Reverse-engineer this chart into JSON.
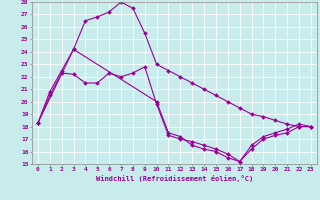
{
  "xlabel": "Windchill (Refroidissement éolien,°C)",
  "bg_color": "#c8ecec",
  "line_color": "#990099",
  "grid_color": "#ffffff",
  "ylim": [
    15,
    28
  ],
  "xlim": [
    -0.5,
    23.5
  ],
  "yticks": [
    15,
    16,
    17,
    18,
    19,
    20,
    21,
    22,
    23,
    24,
    25,
    26,
    27,
    28
  ],
  "xticks": [
    0,
    1,
    2,
    3,
    4,
    5,
    6,
    7,
    8,
    9,
    10,
    11,
    12,
    13,
    14,
    15,
    16,
    17,
    18,
    19,
    20,
    21,
    22,
    23
  ],
  "series1_x": [
    0,
    1,
    2,
    3,
    4,
    5,
    6,
    7,
    8,
    9,
    10,
    11,
    12,
    13,
    14,
    15,
    16,
    17,
    18,
    19,
    20,
    21,
    22,
    23
  ],
  "series1_y": [
    18.3,
    20.5,
    22.3,
    22.2,
    21.5,
    21.5,
    22.3,
    22.0,
    22.3,
    22.8,
    19.8,
    17.3,
    17.0,
    16.8,
    16.5,
    16.2,
    15.8,
    15.2,
    16.2,
    17.0,
    17.3,
    17.5,
    18.0,
    18.0
  ],
  "series2_x": [
    0,
    1,
    2,
    3,
    4,
    5,
    6,
    7,
    8,
    9,
    10,
    11,
    12,
    13,
    14,
    15,
    16,
    17,
    18,
    19,
    20,
    21,
    22,
    23
  ],
  "series2_y": [
    18.3,
    20.8,
    22.5,
    24.2,
    26.5,
    26.8,
    27.2,
    28.0,
    27.5,
    25.5,
    23.0,
    22.5,
    22.0,
    21.5,
    21.0,
    20.5,
    20.0,
    19.5,
    19.0,
    18.8,
    18.5,
    18.2,
    18.0,
    18.0
  ],
  "series3_x": [
    0,
    3,
    10,
    11,
    12,
    13,
    14,
    15,
    16,
    17,
    18,
    19,
    20,
    21,
    22,
    23
  ],
  "series3_y": [
    18.3,
    24.2,
    20.0,
    17.5,
    17.2,
    16.5,
    16.2,
    16.0,
    15.5,
    15.2,
    16.5,
    17.2,
    17.5,
    17.8,
    18.2,
    18.0
  ]
}
